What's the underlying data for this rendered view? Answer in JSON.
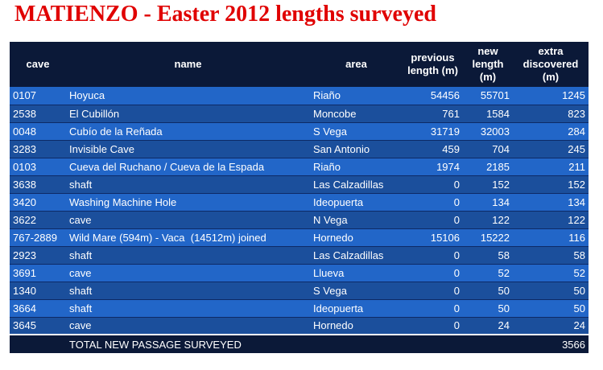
{
  "header": {
    "title": "MATIENZO - Easter 2012 lengths surveyed"
  },
  "table": {
    "columns": [
      "cave",
      "name",
      "area",
      "previous length (m)",
      "new length (m)",
      "extra discovered (m)"
    ],
    "rows": [
      [
        "0107",
        "Hoyuca",
        "Riaño",
        54456,
        55701,
        1245
      ],
      [
        "2538",
        "El Cubillón",
        "Moncobe",
        761,
        1584,
        823
      ],
      [
        "0048",
        "Cubío de la Reñada",
        "S Vega",
        31719,
        32003,
        284
      ],
      [
        "3283",
        "Invisible Cave",
        "San Antonio",
        459,
        704,
        245
      ],
      [
        "0103",
        "Cueva del Ruchano / Cueva de la Espada",
        "Riaño",
        1974,
        2185,
        211
      ],
      [
        "3638",
        "shaft",
        "Las Calzadillas",
        0,
        152,
        152
      ],
      [
        "3420",
        "Washing Machine Hole",
        "Ideopuerta",
        0,
        134,
        134
      ],
      [
        "3622",
        "cave",
        "N Vega",
        0,
        122,
        122
      ],
      [
        "767-2889",
        "Wild Mare (594m) - Vaca  (14512m) joined",
        "Hornedo",
        15106,
        15222,
        116
      ],
      [
        "2923",
        "shaft",
        "Las Calzadillas",
        0,
        58,
        58
      ],
      [
        "3691",
        "cave",
        "Llueva",
        0,
        52,
        52
      ],
      [
        "1340",
        "shaft",
        "S Vega",
        0,
        50,
        50
      ],
      [
        "3664",
        "shaft",
        "Ideopuerta",
        0,
        50,
        50
      ],
      [
        "3645",
        "cave",
        "Hornedo",
        0,
        24,
        24
      ]
    ],
    "total": {
      "label": "TOTAL NEW PASSAGE SURVEYED",
      "value": 3566
    }
  }
}
